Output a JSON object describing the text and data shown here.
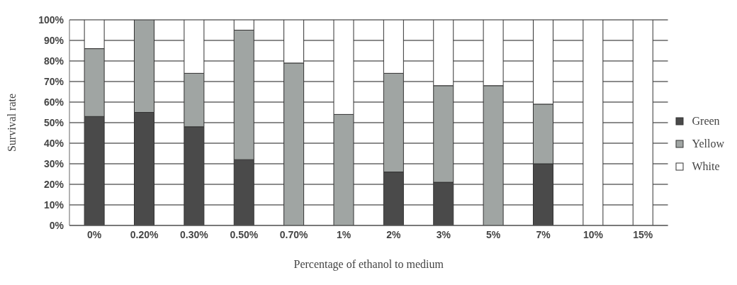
{
  "chart_data": {
    "type": "bar",
    "stacked": true,
    "xlabel": "Percentage of ethanol to medium",
    "ylabel": "Survival rate",
    "categories": [
      "0%",
      "0.20%",
      "0.30%",
      "0.50%",
      "0.70%",
      "1%",
      "2%",
      "3%",
      "5%",
      "7%",
      "10%",
      "15%"
    ],
    "series": [
      {
        "name": "Green",
        "color": "#4a4a4a",
        "values": [
          53,
          55,
          48,
          32,
          0,
          0,
          26,
          21,
          0,
          30,
          0,
          0
        ]
      },
      {
        "name": "Yellow",
        "color": "#a0a5a3",
        "values": [
          33,
          45,
          26,
          63,
          79,
          54,
          48,
          47,
          68,
          29,
          0,
          0
        ]
      },
      {
        "name": "White",
        "color": "#ffffff",
        "values": [
          14,
          0,
          26,
          5,
          21,
          46,
          26,
          32,
          32,
          41,
          100,
          100
        ]
      }
    ],
    "ylim": [
      0,
      100
    ],
    "yticks": [
      {
        "value": 0,
        "label": "0%"
      },
      {
        "value": 10,
        "label": "10%"
      },
      {
        "value": 20,
        "label": "20%"
      },
      {
        "value": 30,
        "label": "30%"
      },
      {
        "value": 40,
        "label": "40%"
      },
      {
        "value": 50,
        "label": "50%"
      },
      {
        "value": 60,
        "label": "60%"
      },
      {
        "value": 70,
        "label": "70%"
      },
      {
        "value": 80,
        "label": "80%"
      },
      {
        "value": 90,
        "label": "90%"
      },
      {
        "value": 100,
        "label": "100%"
      }
    ],
    "grid": "y",
    "legend": "right"
  }
}
